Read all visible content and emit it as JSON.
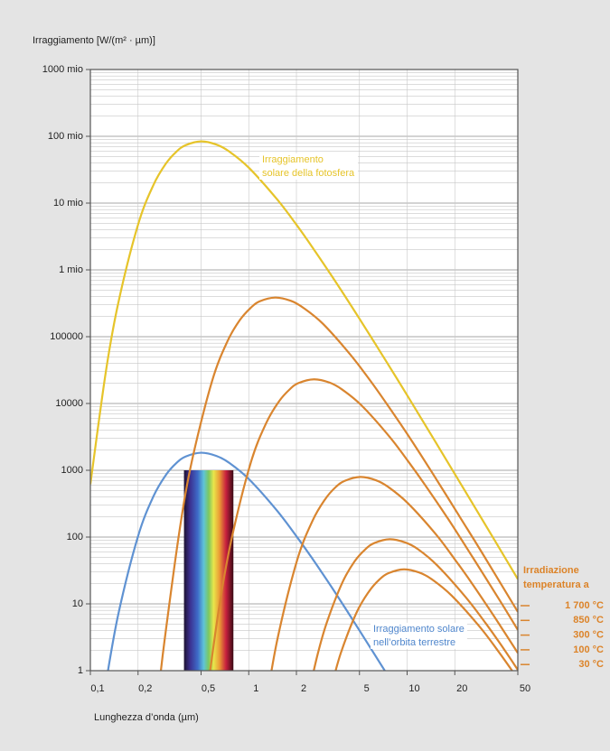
{
  "chart_data": {
    "type": "line",
    "ylabel": "Irraggiamento [W/(m² · µm)]",
    "xlabel": "Lunghezza d’onda  (µm)",
    "log_x": true,
    "log_y": true,
    "grid": true,
    "minor_grid": true,
    "xlim": [
      0.1,
      50
    ],
    "ylim": [
      1,
      1000000000
    ],
    "xticks": [
      {
        "value": 0.1,
        "label": "0,1"
      },
      {
        "value": 0.2,
        "label": "0,2"
      },
      {
        "value": 0.5,
        "label": "0,5"
      },
      1,
      2,
      5,
      10,
      20,
      50
    ],
    "yticks": [
      1,
      10,
      100,
      1000,
      10000,
      100000,
      {
        "value": 1000000,
        "label": "1 mio"
      },
      {
        "value": 10000000,
        "label": "10 mio"
      },
      {
        "value": 100000000,
        "label": "100 mio"
      },
      {
        "value": 1000000000,
        "label": "1000 mio"
      }
    ],
    "legend_title": [
      "Irradiazione",
      "temperatura a"
    ],
    "visible_band": {
      "x": [
        0.39,
        0.8
      ],
      "y": [
        1,
        1000
      ]
    },
    "series": [
      {
        "name": [
          "Irraggiamento",
          "solare della fotosfera"
        ],
        "color": "#e6c42a",
        "x": [
          0.1,
          0.125,
          0.15,
          0.2,
          0.25,
          0.3,
          0.35,
          0.4,
          0.5,
          0.625,
          0.75,
          1,
          1.5,
          2,
          2.5,
          3.5,
          5,
          7.5,
          10,
          15,
          25,
          50
        ],
        "values": [
          618,
          29000,
          319000,
          4750000,
          18600000,
          39100000,
          59100000,
          73700000,
          84000000,
          75200000,
          59600000,
          34000000,
          11600000,
          4750000,
          2250000,
          689000,
          186000,
          40200,
          13300,
          2730,
          366,
          23.5
        ]
      },
      {
        "name": [
          "Irraggiamento solare",
          "nell’orbita terrestre"
        ],
        "color": "#5f92d2",
        "x": [
          0.125,
          0.15,
          0.2,
          0.25,
          0.3,
          0.35,
          0.4,
          0.5,
          0.625,
          0.75,
          1,
          1.5,
          2,
          2.5,
          3.5,
          5,
          7.5
        ],
        "values": [
          0.63,
          6.95,
          103,
          406,
          853,
          1290,
          1605,
          1830,
          1640,
          1300,
          741,
          253,
          103,
          49,
          15,
          4.0,
          0.87
        ]
      },
      {
        "name": "1 700 °C",
        "color": "#d9852f",
        "x": [
          0.27,
          0.294,
          0.367,
          0.44,
          0.587,
          0.734,
          0.881,
          1.03,
          1.17,
          1.47,
          1.84,
          2.2,
          2.94,
          4.4,
          5.87,
          7.34,
          10.3,
          14.7,
          22,
          29.4,
          50
        ],
        "values": [
          0.5,
          2.83,
          133,
          1463,
          21750,
          85500,
          179000,
          271000,
          338000,
          385000,
          345000,
          273000,
          156000,
          53200,
          21750,
          10300,
          3160,
          851,
          184,
          60.8,
          7.6
        ]
      },
      {
        "name": "850 °C",
        "color": "#d9852f",
        "x": [
          0.516,
          0.645,
          0.774,
          1.03,
          1.29,
          1.55,
          1.81,
          2.06,
          2.58,
          3.23,
          3.87,
          5.16,
          7.74,
          10.3,
          12.9,
          18.1,
          25.8,
          38.7,
          50
        ],
        "values": [
          0.169,
          7.9,
          87.4,
          1300,
          5110,
          10700,
          16200,
          20200,
          23000,
          20600,
          16300,
          9320,
          3180,
          1300,
          616,
          189,
          50.8,
          11.0,
          4.08
        ]
      },
      {
        "name": "300 °C",
        "color": "#d9852f",
        "x": [
          1.27,
          1.52,
          2.02,
          2.53,
          3.04,
          3.54,
          4.05,
          5.06,
          6.33,
          7.59,
          10.1,
          15.2,
          20.2,
          25.3,
          35.4,
          50
        ],
        "values": [
          0.27,
          3.02,
          44.9,
          176,
          370,
          560,
          697,
          795,
          712,
          564,
          322,
          110,
          44.9,
          21.3,
          6.52,
          1.84
        ]
      },
      {
        "name": "100 °C",
        "color": "#d9852f",
        "x": [
          2.33,
          2.72,
          3.11,
          3.89,
          4.66,
          5.44,
          6.22,
          7.77,
          9.71,
          11.7,
          15.5,
          23.3,
          31.1,
          38.9,
          50
        ],
        "values": [
          0.353,
          1.74,
          5.25,
          20.6,
          43.3,
          65.4,
          81.5,
          92.9,
          83.1,
          66.0,
          37.6,
          12.8,
          5.25,
          2.49,
          1.03
        ]
      },
      {
        "name": "30 °C",
        "color": "#d9852f",
        "x": [
          3.35,
          3.82,
          4.78,
          5.74,
          6.69,
          7.65,
          9.56,
          11.95,
          14.3,
          19.1,
          28.7,
          38.2,
          50
        ],
        "values": [
          0.615,
          1.86,
          7.3,
          15.3,
          23.2,
          28.9,
          32.9,
          29.4,
          23.4,
          13.3,
          4.55,
          1.86,
          0.755
        ]
      }
    ]
  }
}
